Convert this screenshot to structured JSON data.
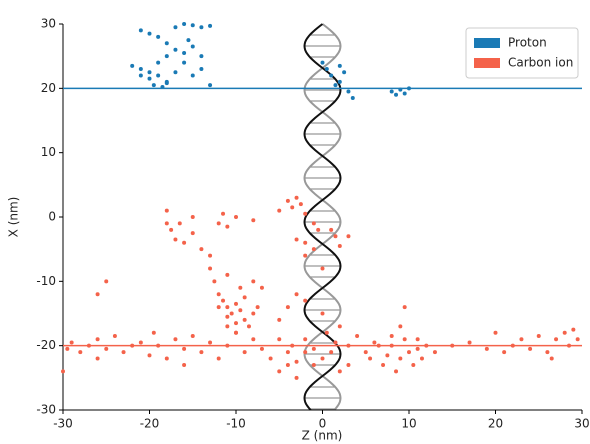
{
  "chart_data": {
    "type": "scatter",
    "xlabel": "Z (nm)",
    "ylabel": "X (nm)",
    "xlim": [
      -30,
      30
    ],
    "ylim": [
      -30,
      30
    ],
    "xticks": [
      -30,
      -20,
      -10,
      0,
      10,
      20,
      30
    ],
    "yticks": [
      -30,
      -20,
      -10,
      0,
      10,
      20,
      30
    ],
    "legend": "upper right",
    "series": [
      {
        "name": "Proton",
        "color": "#1a7ab5",
        "track": 20,
        "x": [
          -21,
          -20,
          -19,
          -18,
          -17,
          -16,
          -15,
          -14,
          -13,
          -17,
          -16,
          -15,
          -14,
          -18,
          -19,
          -22,
          -21,
          -20,
          -19,
          -18,
          -19.5,
          -18.5,
          -18,
          -16,
          -15,
          -14,
          -13,
          -20,
          -21,
          -17,
          -15.5,
          0,
          0.5,
          1,
          2,
          2.5,
          1.5,
          3,
          3.5,
          2,
          8,
          8.5,
          9,
          10,
          9.5
        ],
        "values": [
          29,
          28.5,
          28,
          27,
          29.5,
          30,
          29.8,
          29.5,
          29.7,
          26,
          25.5,
          26.5,
          25,
          25,
          24,
          23.5,
          23,
          22.5,
          22,
          21,
          20.5,
          20.2,
          20.8,
          24,
          22,
          23,
          20.5,
          21.5,
          22,
          22.5,
          27.5,
          24,
          23,
          22,
          23.5,
          22.5,
          20.5,
          19.5,
          18.5,
          21,
          19.5,
          19,
          19.8,
          20,
          19.2
        ]
      },
      {
        "name": "Carbon ion",
        "color": "#f4624a",
        "track": -20,
        "x": [
          -30,
          -29.5,
          -29,
          -28,
          -27,
          -26,
          -26,
          -25,
          -24,
          -23,
          -22,
          -21,
          -20,
          -19.5,
          -19,
          -18,
          -17,
          -16,
          -16,
          -15,
          -14,
          -13,
          -12,
          -11,
          -10,
          -9,
          -8,
          -7,
          -6,
          -5,
          -5,
          -4,
          -4,
          -3.5,
          -3,
          -3,
          -2,
          -2,
          -1,
          -1,
          0,
          0.5,
          1,
          1.5,
          2,
          3,
          3,
          4,
          5,
          5.5,
          6,
          6.5,
          7,
          7.5,
          8,
          8,
          8.5,
          9,
          9,
          9.5,
          9.5,
          10,
          10.5,
          11,
          11,
          11.5,
          12,
          13,
          15,
          17,
          19,
          20,
          21,
          22,
          23,
          24,
          25,
          26,
          26.5,
          27,
          28,
          28.5,
          29,
          29.5,
          -12,
          -11.5,
          -11,
          -10.5,
          -10,
          -9.5,
          -9,
          -10,
          -11,
          -12,
          -9,
          -8,
          -7.5,
          -8.5,
          -10,
          -11,
          -12.5,
          -13,
          -11,
          -9.5,
          -8,
          -7,
          -18,
          -17.5,
          -17,
          -16,
          -15,
          -16.5,
          -18,
          -14,
          -13,
          -15,
          -12,
          -11,
          -11.5,
          -10,
          -8,
          -4,
          -3.5,
          -3,
          -2.5,
          -5,
          -2,
          -1,
          -0.5,
          -3,
          -2,
          1,
          1.5,
          -1,
          -2,
          0,
          2,
          3,
          -26,
          -25,
          -4,
          -3,
          -2,
          0,
          2,
          -5
        ],
        "values": [
          -24,
          -20.5,
          -19.5,
          -21,
          -20,
          -19,
          -22,
          -20.5,
          -18.5,
          -21,
          -20,
          -19.5,
          -21.5,
          -18,
          -20,
          -22,
          -19,
          -20.5,
          -23,
          -18.5,
          -21,
          -19.5,
          -22,
          -20,
          -18,
          -21,
          -19,
          -20.5,
          -22,
          -19,
          -24,
          -21,
          -23,
          -20,
          -22.5,
          -25,
          -21,
          -19,
          -23,
          -20.5,
          -22,
          -18,
          -21,
          -19.5,
          -24,
          -20,
          -23,
          -18.5,
          -21,
          -22,
          -19.5,
          -20,
          -23,
          -21.5,
          -20,
          -18.5,
          -24,
          -22,
          -17,
          -19,
          -14,
          -21,
          -23,
          -20.5,
          -19,
          -22,
          -20,
          -21,
          -20,
          -19.5,
          -20.5,
          -18,
          -21,
          -20,
          -19,
          -20.5,
          -18.5,
          -21,
          -22,
          -19,
          -18,
          -20,
          -17.5,
          -19,
          -12,
          -13,
          -14,
          -15,
          -13.5,
          -14.5,
          -16,
          -16.5,
          -15.5,
          -14,
          -12.5,
          -15,
          -14,
          -17,
          -18,
          -17,
          -10,
          -8,
          -9,
          -11,
          -10,
          -11,
          -1,
          -2,
          -3.5,
          -4,
          -2.5,
          -1,
          1,
          -5,
          -6,
          0,
          -1,
          -1.5,
          0.5,
          0,
          -0.5,
          2.5,
          1.5,
          3,
          2,
          1,
          0.5,
          -1,
          -2,
          -3.5,
          -4,
          -2,
          -3,
          -5,
          -6,
          -8,
          -4.5,
          -3,
          -12,
          -10,
          -14,
          -12,
          -13,
          -15,
          -17,
          -16
        ]
      }
    ]
  }
}
